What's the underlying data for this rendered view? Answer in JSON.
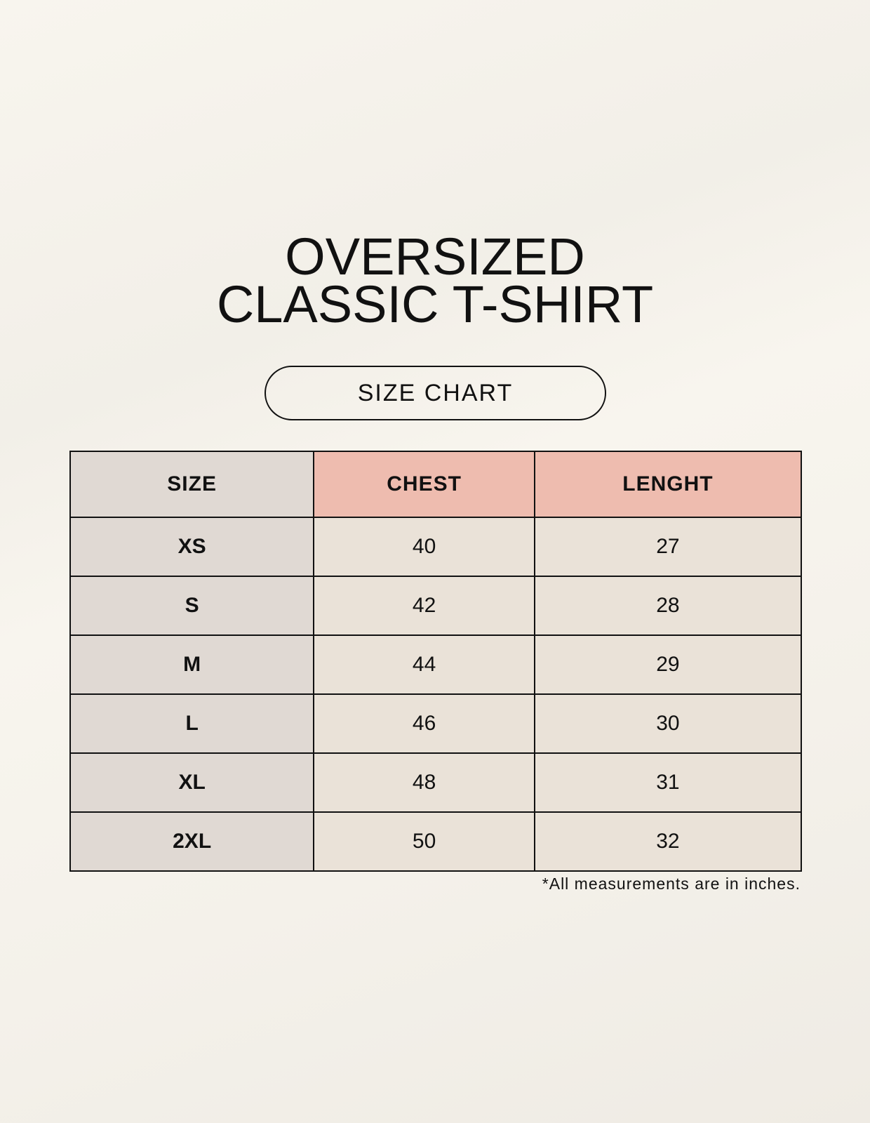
{
  "title": {
    "line1": "OVERSIZED",
    "line2": "CLASSIC T-SHIRT"
  },
  "badge": "SIZE CHART",
  "table": {
    "headers": [
      "SIZE",
      "CHEST",
      "LENGHT"
    ],
    "rows": [
      [
        "XS",
        "40",
        "27"
      ],
      [
        "S",
        "42",
        "28"
      ],
      [
        "M",
        "44",
        "29"
      ],
      [
        "L",
        "46",
        "30"
      ],
      [
        "XL",
        "48",
        "31"
      ],
      [
        "2XL",
        "50",
        "32"
      ]
    ]
  },
  "note": "*All measurements are in inches.",
  "colors": {
    "size_column": "#e0d9d3",
    "header_accent": "#eebcaf",
    "value_cells": "#eae2d8"
  }
}
